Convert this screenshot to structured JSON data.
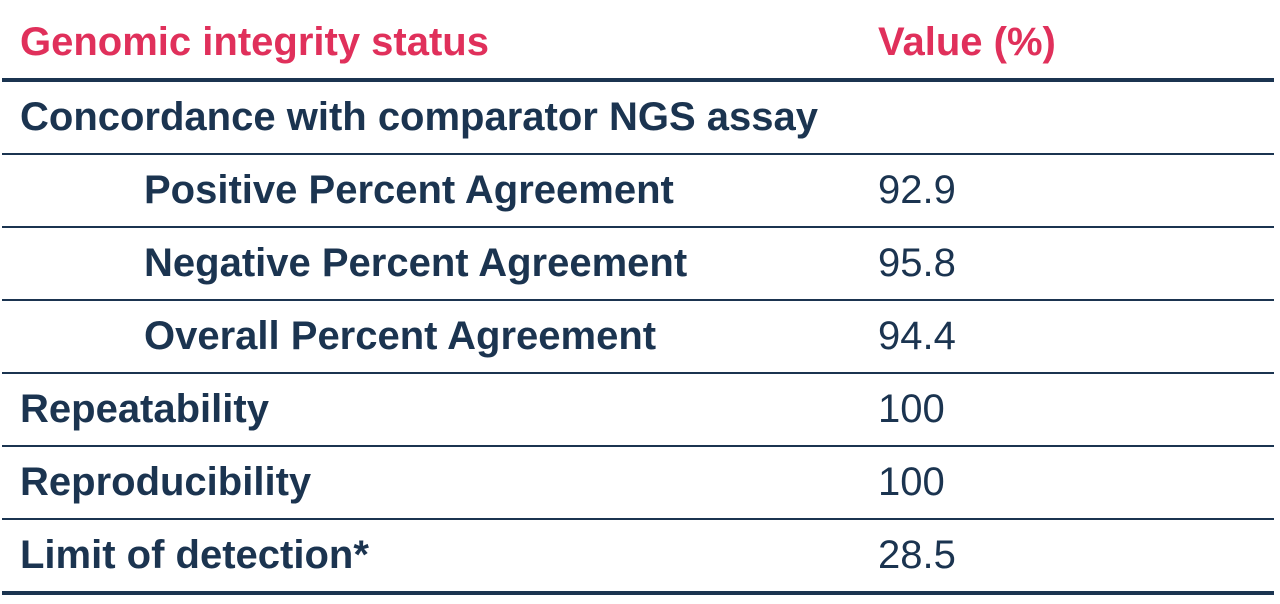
{
  "header": {
    "col1": "Genomic integrity status",
    "col2": "Value (%)"
  },
  "rows": [
    {
      "label": "Concordance with comparator NGS assay",
      "value": ""
    },
    {
      "label": "Positive Percent Agreement",
      "value": "92.9"
    },
    {
      "label": "Negative Percent Agreement",
      "value": "95.8"
    },
    {
      "label": "Overall Percent Agreement",
      "value": "94.4"
    },
    {
      "label": "Repeatability",
      "value": "100"
    },
    {
      "label": "Reproducibility",
      "value": "100"
    },
    {
      "label": "Limit of detection*",
      "value": "28.5"
    }
  ],
  "colors": {
    "header_text": "#e0305b",
    "body_text": "#1b3450",
    "rule": "#1b3450"
  }
}
